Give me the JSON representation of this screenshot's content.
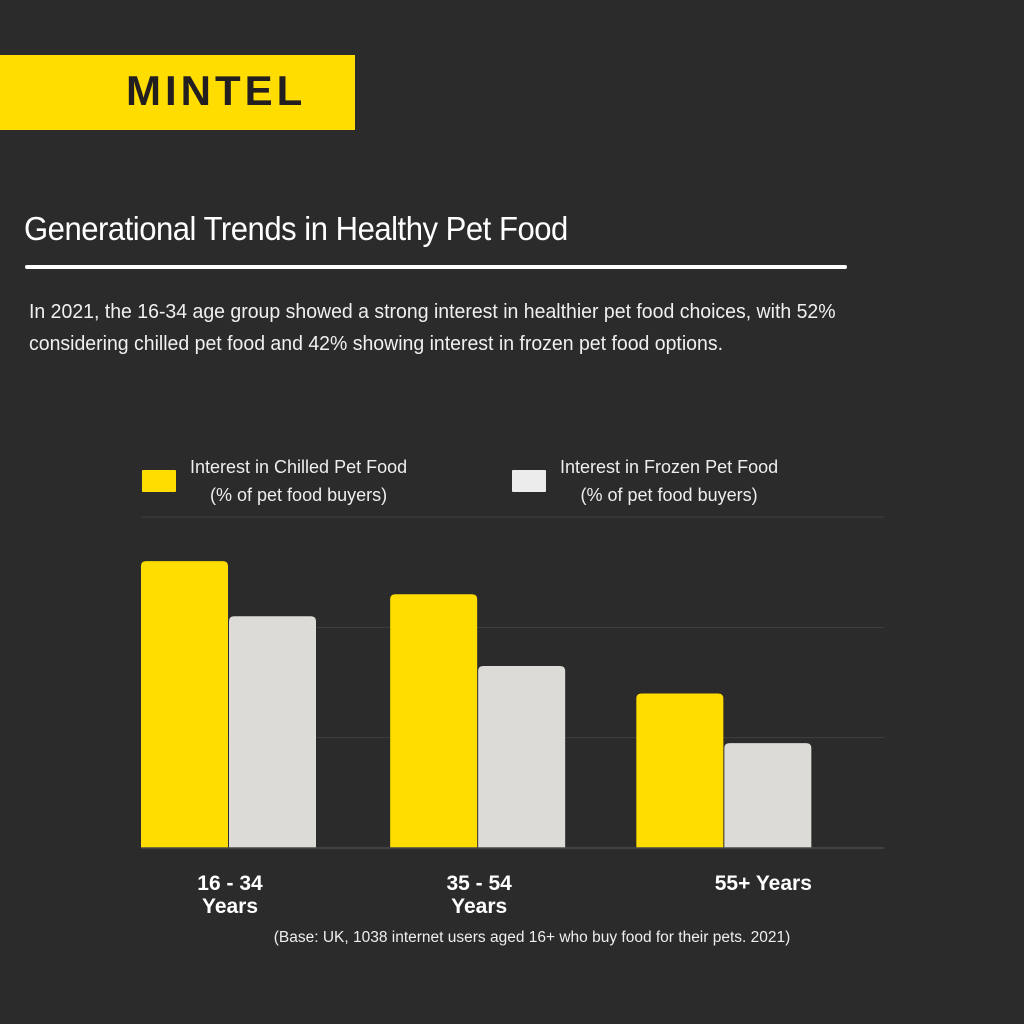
{
  "brand": {
    "name": "MINTEL",
    "color": "#ffdd00"
  },
  "header": {
    "title": "Generational Trends in Healthy Pet Food",
    "intro": "In 2021, the 16-34 age group showed a strong interest in healthier pet food choices, with 52% considering chilled pet food and 42% showing interest in frozen pet food options."
  },
  "footer": {
    "base_note": "(Base: UK, 1038 internet users aged 16+ who buy food for their pets. 2021)"
  },
  "chart_data": {
    "type": "bar",
    "title": "Generational Trends in Healthy Pet Food",
    "xlabel": "",
    "ylabel": "% of pet food buyers",
    "categories": [
      "16 - 34 Years",
      "35 - 54 Years",
      "55+ Years"
    ],
    "category_lines": [
      [
        "16 - 34",
        "Years"
      ],
      [
        "35 - 54",
        "Years"
      ],
      [
        "55+ Years"
      ]
    ],
    "series": [
      {
        "name": "Interest in Chilled Pet Food",
        "sub": "(% of pet food buyers)",
        "color": "#ffdd00",
        "values": [
          52,
          46,
          28
        ]
      },
      {
        "name": "Interest in Frozen Pet Food",
        "sub": "(% of pet food buyers)",
        "color": "#dcdbd7",
        "values": [
          42,
          33,
          19
        ]
      }
    ],
    "ylim": [
      0,
      60
    ],
    "gridlines": [
      20,
      40,
      60
    ],
    "grid": true,
    "legend": "top"
  }
}
